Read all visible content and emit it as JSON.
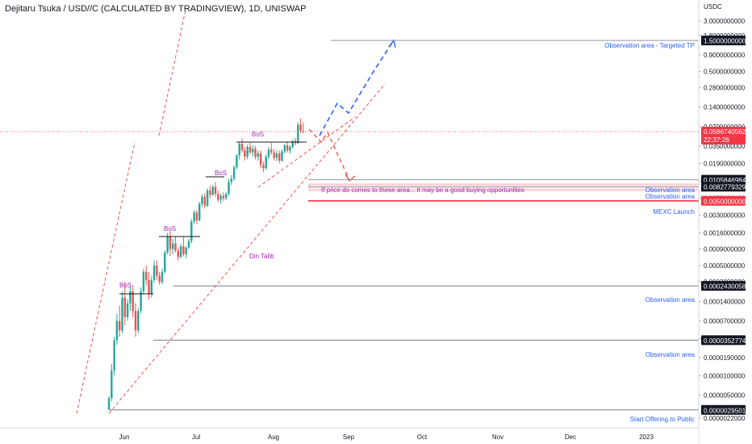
{
  "chart_data": {
    "type": "candlestick",
    "title": "Dejitaru Tsuka / USD//C (CALCULATED BY TRADINGVIEW), 1D, UNISWAP",
    "quote_currency": "USDC",
    "y_scale": "log",
    "ylim": [
      2.2e-06,
      3.0
    ],
    "x_ticks": [
      "Jun",
      "Jul",
      "Aug",
      "Sep",
      "Oct",
      "Nov",
      "Dec",
      "2023"
    ],
    "y_ticks": [
      "3.0000000000",
      "1.8000000000",
      "0.9000000000",
      "0.5000000000",
      "0.2800000000",
      "0.1400000000",
      "0.0700000000",
      "0.0350000000",
      "0.0190000000",
      "0.0100000000",
      "0.0055000000",
      "0.0030000000",
      "0.0016000000",
      "0.0009000000",
      "0.0005000000",
      "0.0002800000",
      "0.0001400000",
      "0.0000700000",
      "0.0000370000",
      "0.0000190000",
      "0.0000100000",
      "0.0000050000",
      "0.0000022000"
    ],
    "last_price": {
      "value": "0.0586740562",
      "countdown": "22:37:26",
      "color": "#f23645"
    },
    "price_levels": [
      {
        "value": "1.5000000000",
        "label": "Observation area - Targeted TP",
        "color": "#9598a1"
      },
      {
        "value": "0.0105846984",
        "label": "Observation area",
        "color": "#9598a1"
      },
      {
        "value": "0.0082779329",
        "label": "Observation area",
        "color": "#9598a1"
      },
      {
        "value": "0.0050000000",
        "label": "MEXC Launch",
        "color": "#f23645"
      },
      {
        "value": "0.0002430058",
        "label": "Observation area",
        "color": "#787b86"
      },
      {
        "value": "0.0000352774",
        "label": "Observation area",
        "color": "#787b86"
      },
      {
        "value": "0.0000029501",
        "label": "Start Offering to Public",
        "color": "#787b86"
      }
    ],
    "annotations": [
      {
        "text": "BoS",
        "kind": "break-of-structure"
      },
      {
        "text": "BoS",
        "kind": "break-of-structure"
      },
      {
        "text": "BoS",
        "kind": "break-of-structure"
      },
      {
        "text": "BoS",
        "kind": "break-of-structure"
      },
      {
        "text": "Din Talib",
        "kind": "author"
      },
      {
        "text": "If price do comes to these area... it may be a good buying opportunities",
        "kind": "note"
      }
    ],
    "colors": {
      "up": "#26a69a",
      "down": "#ef5350",
      "trend": "#ef5350",
      "projection": "#2962ff",
      "annotation": "#9c27b0",
      "label_blue": "#2962ff"
    },
    "candles": [
      {
        "o": 3e-06,
        "h": 4.8e-06,
        "l": 2.9501e-06,
        "c": 4.5e-06
      },
      {
        "o": 4.5e-06,
        "h": 1.5e-05,
        "l": 4e-06,
        "c": 1.2e-05
      },
      {
        "o": 1.2e-05,
        "h": 4e-05,
        "l": 1e-05,
        "c": 3.5e-05
      },
      {
        "o": 3.5e-05,
        "h": 9e-05,
        "l": 3e-05,
        "c": 7e-05
      },
      {
        "o": 7e-05,
        "h": 0.00012,
        "l": 4e-05,
        "c": 5e-05
      },
      {
        "o": 5e-05,
        "h": 0.0002,
        "l": 4.5e-05,
        "c": 0.00016
      },
      {
        "o": 0.00016,
        "h": 0.00028,
        "l": 6e-05,
        "c": 8e-05
      },
      {
        "o": 8e-05,
        "h": 0.00015,
        "l": 7e-05,
        "c": 0.00013
      },
      {
        "o": 0.00013,
        "h": 0.00024,
        "l": 0.0001,
        "c": 0.0002
      },
      {
        "o": 0.0002,
        "h": 0.00025,
        "l": 8e-05,
        "c": 0.0001
      },
      {
        "o": 0.0001,
        "h": 0.00013,
        "l": 4e-05,
        "c": 5e-05
      },
      {
        "o": 5e-05,
        "h": 0.00011,
        "l": 4.5e-05,
        "c": 0.0001
      },
      {
        "o": 0.0001,
        "h": 0.00023,
        "l": 9e-05,
        "c": 0.0002
      },
      {
        "o": 0.0002,
        "h": 0.00045,
        "l": 0.00018,
        "c": 0.0004
      },
      {
        "o": 0.0004,
        "h": 0.0005,
        "l": 0.00025,
        "c": 0.0003
      },
      {
        "o": 0.0003,
        "h": 0.0004,
        "l": 0.00015,
        "c": 0.00018
      },
      {
        "o": 0.00018,
        "h": 0.00035,
        "l": 0.00016,
        "c": 0.0003
      },
      {
        "o": 0.0003,
        "h": 0.0006,
        "l": 0.00027,
        "c": 0.0005
      },
      {
        "o": 0.0005,
        "h": 0.0006,
        "l": 0.0003,
        "c": 0.00035
      },
      {
        "o": 0.00035,
        "h": 0.0004,
        "l": 0.00025,
        "c": 0.00028
      },
      {
        "o": 0.00028,
        "h": 0.00045,
        "l": 0.00026,
        "c": 0.0004
      },
      {
        "o": 0.0004,
        "h": 0.00085,
        "l": 0.00038,
        "c": 0.0008
      },
      {
        "o": 0.0008,
        "h": 0.0016,
        "l": 0.00075,
        "c": 0.0014
      },
      {
        "o": 0.0014,
        "h": 0.0017,
        "l": 0.0007,
        "c": 0.0009
      },
      {
        "o": 0.0009,
        "h": 0.0013,
        "l": 0.00075,
        "c": 0.0011
      },
      {
        "o": 0.0011,
        "h": 0.0014,
        "l": 0.0008,
        "c": 0.00085
      },
      {
        "o": 0.00085,
        "h": 0.00095,
        "l": 0.0006,
        "c": 0.00068
      },
      {
        "o": 0.00068,
        "h": 0.0011,
        "l": 0.00065,
        "c": 0.001
      },
      {
        "o": 0.001,
        "h": 0.0014,
        "l": 0.0007,
        "c": 0.00075
      },
      {
        "o": 0.00075,
        "h": 0.001,
        "l": 0.00065,
        "c": 0.00095
      },
      {
        "o": 0.00095,
        "h": 0.0013,
        "l": 0.0009,
        "c": 0.0012
      },
      {
        "o": 0.0012,
        "h": 0.0026,
        "l": 0.0011,
        "c": 0.0024
      },
      {
        "o": 0.0024,
        "h": 0.0036,
        "l": 0.0022,
        "c": 0.0033
      },
      {
        "o": 0.0033,
        "h": 0.0036,
        "l": 0.0022,
        "c": 0.0025
      },
      {
        "o": 0.0025,
        "h": 0.0048,
        "l": 0.0024,
        "c": 0.0045
      },
      {
        "o": 0.0045,
        "h": 0.0063,
        "l": 0.004,
        "c": 0.0058
      },
      {
        "o": 0.0058,
        "h": 0.0066,
        "l": 0.0038,
        "c": 0.0042
      },
      {
        "o": 0.0042,
        "h": 0.0078,
        "l": 0.004,
        "c": 0.0072
      },
      {
        "o": 0.0072,
        "h": 0.0085,
        "l": 0.0055,
        "c": 0.0062
      },
      {
        "o": 0.0062,
        "h": 0.0088,
        "l": 0.006,
        "c": 0.0082
      },
      {
        "o": 0.0082,
        "h": 0.0098,
        "l": 0.0058,
        "c": 0.0064
      },
      {
        "o": 0.0064,
        "h": 0.0072,
        "l": 0.0048,
        "c": 0.0052
      },
      {
        "o": 0.0052,
        "h": 0.0065,
        "l": 0.0045,
        "c": 0.006
      },
      {
        "o": 0.006,
        "h": 0.0068,
        "l": 0.005,
        "c": 0.0055
      },
      {
        "o": 0.0055,
        "h": 0.0068,
        "l": 0.0051,
        "c": 0.0064
      },
      {
        "o": 0.0064,
        "h": 0.0108,
        "l": 0.006,
        "c": 0.0098
      },
      {
        "o": 0.0098,
        "h": 0.0125,
        "l": 0.0088,
        "c": 0.011
      },
      {
        "o": 0.011,
        "h": 0.0175,
        "l": 0.0102,
        "c": 0.0165
      },
      {
        "o": 0.0165,
        "h": 0.0265,
        "l": 0.0155,
        "c": 0.025
      },
      {
        "o": 0.025,
        "h": 0.041,
        "l": 0.022,
        "c": 0.038
      },
      {
        "o": 0.038,
        "h": 0.046,
        "l": 0.028,
        "c": 0.03
      },
      {
        "o": 0.03,
        "h": 0.034,
        "l": 0.021,
        "c": 0.024
      },
      {
        "o": 0.024,
        "h": 0.037,
        "l": 0.022,
        "c": 0.034
      },
      {
        "o": 0.034,
        "h": 0.039,
        "l": 0.026,
        "c": 0.028
      },
      {
        "o": 0.028,
        "h": 0.036,
        "l": 0.024,
        "c": 0.032
      },
      {
        "o": 0.032,
        "h": 0.035,
        "l": 0.022,
        "c": 0.024
      },
      {
        "o": 0.024,
        "h": 0.03,
        "l": 0.021,
        "c": 0.027
      },
      {
        "o": 0.027,
        "h": 0.03,
        "l": 0.016,
        "c": 0.018
      },
      {
        "o": 0.018,
        "h": 0.02,
        "l": 0.0138,
        "c": 0.016
      },
      {
        "o": 0.016,
        "h": 0.026,
        "l": 0.015,
        "c": 0.024
      },
      {
        "o": 0.024,
        "h": 0.034,
        "l": 0.022,
        "c": 0.031
      },
      {
        "o": 0.031,
        "h": 0.039,
        "l": 0.026,
        "c": 0.028
      },
      {
        "o": 0.028,
        "h": 0.032,
        "l": 0.021,
        "c": 0.023
      },
      {
        "o": 0.023,
        "h": 0.03,
        "l": 0.0205,
        "c": 0.027
      },
      {
        "o": 0.027,
        "h": 0.03,
        "l": 0.019,
        "c": 0.021
      },
      {
        "o": 0.021,
        "h": 0.031,
        "l": 0.02,
        "c": 0.029
      },
      {
        "o": 0.029,
        "h": 0.038,
        "l": 0.027,
        "c": 0.036
      },
      {
        "o": 0.036,
        "h": 0.04,
        "l": 0.028,
        "c": 0.03
      },
      {
        "o": 0.03,
        "h": 0.036,
        "l": 0.027,
        "c": 0.034
      },
      {
        "o": 0.034,
        "h": 0.044,
        "l": 0.032,
        "c": 0.042
      },
      {
        "o": 0.042,
        "h": 0.047,
        "l": 0.036,
        "c": 0.039
      },
      {
        "o": 0.039,
        "h": 0.082,
        "l": 0.038,
        "c": 0.075
      },
      {
        "o": 0.075,
        "h": 0.094,
        "l": 0.055,
        "c": 0.06
      },
      {
        "o": 0.06,
        "h": 0.082,
        "l": 0.055,
        "c": 0.0586740562
      }
    ]
  }
}
